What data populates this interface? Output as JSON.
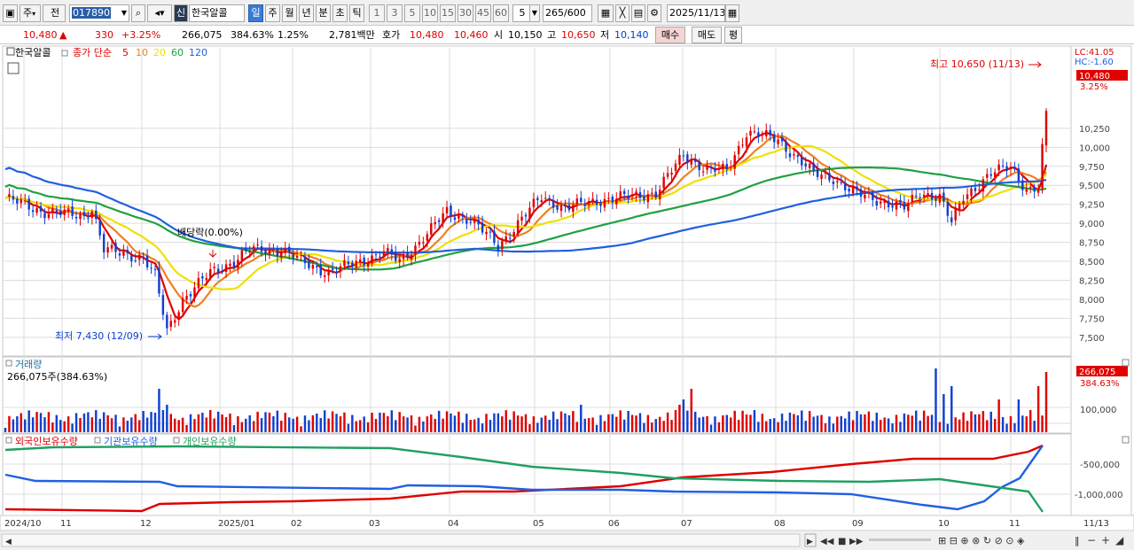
{
  "toolbar": {
    "period_label": "주",
    "market_label": "전",
    "code": "017890",
    "shin": "신",
    "name": "한국알콜",
    "tf_buttons": [
      "일",
      "주",
      "월",
      "년",
      "분",
      "초",
      "틱"
    ],
    "num_buttons": [
      "1",
      "3",
      "5",
      "10",
      "15",
      "30",
      "45",
      "60"
    ],
    "unit_value": "5",
    "count": "265",
    "count_total": "/600",
    "date": "2025/11/13"
  },
  "info": {
    "price": "10,480",
    "arrow": "▲",
    "change": "330",
    "change_pct": "+3.25%",
    "volume": "266,075",
    "vol_ratio": "384.63%",
    "turnover": "1.25%",
    "amount": "2,781백만",
    "hoga_label": "호가",
    "ask": "10,480",
    "bid": "10,460",
    "open_label": "시",
    "open": "10,150",
    "high_label": "고",
    "high": "10,650",
    "low_label": "저",
    "low": "10,140",
    "buy_btn": "매수",
    "sell_btn": "매도",
    "eval_btn": "평"
  },
  "price_pane": {
    "title": "한국알콜",
    "legend_label": "종가 단순",
    "ma": [
      {
        "label": "5",
        "color": "#e00000"
      },
      {
        "label": "10",
        "color": "#f08020"
      },
      {
        "label": "20",
        "color": "#f0e000"
      },
      {
        "label": "60",
        "color": "#20a040"
      },
      {
        "label": "120",
        "color": "#2060e0"
      }
    ],
    "lc": "LC:41.05",
    "hc": "HC:-1.60",
    "last_price": "10,480",
    "last_pct": "3.25%",
    "max_label": "최고 10,650 (11/13)",
    "min_label": "최저 7,430 (12/09)",
    "dividend_label": "배당락(0.00%)",
    "y_ticks": [
      "10,250",
      "10,000",
      "9,750",
      "9,500",
      "9,250",
      "9,000",
      "8,750",
      "8,500",
      "8,250",
      "8,000",
      "7,750",
      "7,500"
    ]
  },
  "volume_pane": {
    "title": "거래량",
    "value": "266,075주(384.63%)",
    "last_vol": "266,075",
    "last_pct": "384.63%",
    "tick": "100,000"
  },
  "holdings_pane": {
    "series": [
      {
        "name": "외국인보유수량",
        "color": "#e00000"
      },
      {
        "name": "기관보유수량",
        "color": "#2060e0"
      },
      {
        "name": "개인보유수량",
        "color": "#20a060"
      }
    ],
    "ticks": [
      "-500,000",
      "-1,000,000"
    ]
  },
  "x_axis": {
    "labels": [
      "2024/10",
      "11",
      "12",
      "2025/01",
      "02",
      "03",
      "04",
      "05",
      "06",
      "07",
      "08",
      "09",
      "10",
      "11"
    ],
    "end_label": "11/13"
  },
  "colors": {
    "up": "#e00000",
    "down": "#1040d0",
    "grid": "#dcdcdc"
  }
}
